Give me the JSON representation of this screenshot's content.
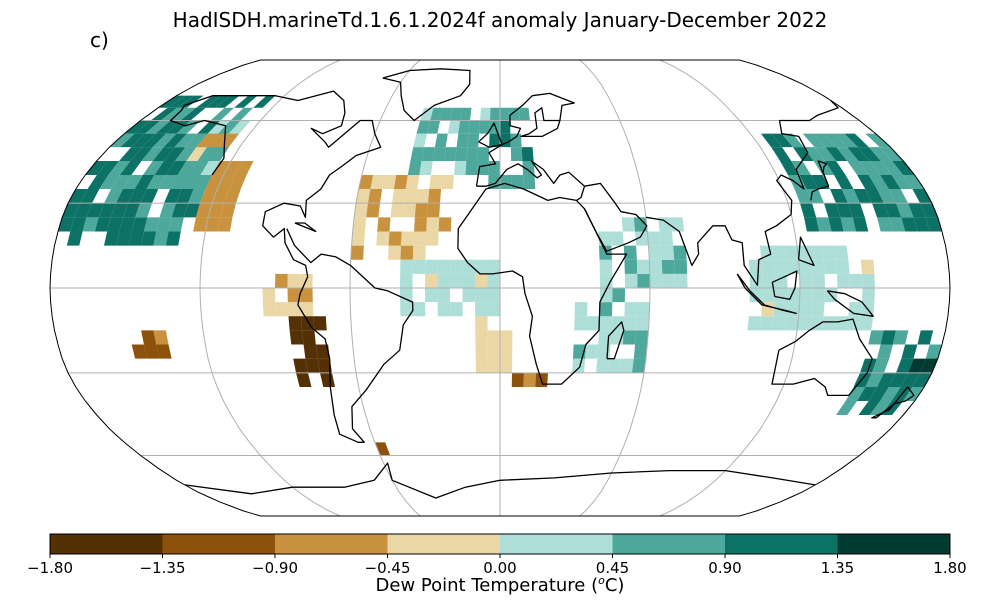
{
  "title": "HadISDH.marineTd.1.6.1.2024f anomaly January-December 2022",
  "panel_label": "c)",
  "colorbar": {
    "label_main": "Dew Point Temperature (",
    "label_sup": "o",
    "label_end": "C)",
    "ticks": [
      "−1.80",
      "−1.35",
      "−0.90",
      "−0.45",
      "0.00",
      "0.45",
      "0.90",
      "1.35",
      "1.80"
    ],
    "colors": [
      "#543005",
      "#8c510a",
      "#c9923f",
      "#ebd7a6",
      "#addfd8",
      "#4ea89c",
      "#0d7266",
      "#023b31"
    ]
  },
  "chart_data": {
    "type": "heatmap",
    "projection": "Robinson",
    "title": "HadISDH.marineTd.1.6.1.2024f anomaly January-December 2022",
    "colorbar_label": "Dew Point Temperature (oC)",
    "value_range": [
      -1.8,
      1.8
    ],
    "bins": [
      -1.8,
      -1.35,
      -0.9,
      -0.45,
      0.0,
      0.45,
      0.9,
      1.35,
      1.8
    ],
    "grid_resolution_deg": 5,
    "regions": [
      {
        "lat": [
          15,
          70
        ],
        "lon": [
          -180,
          -125
        ],
        "anomaly": 1.0
      },
      {
        "lat": [
          35,
          60
        ],
        "lon": [
          -140,
          -125
        ],
        "anomaly": 0.6
      },
      {
        "lat": [
          20,
          45
        ],
        "lon": [
          -125,
          -110
        ],
        "anomaly": -0.7
      },
      {
        "lat": [
          45,
          55
        ],
        "lon": [
          -140,
          -125
        ],
        "anomaly": -0.5
      },
      {
        "lat": [
          -15,
          5
        ],
        "lon": [
          -95,
          -75
        ],
        "anomaly": -0.3
      },
      {
        "lat": [
          -35,
          -10
        ],
        "lon": [
          -85,
          -70
        ],
        "anomaly": -1.6
      },
      {
        "lat": [
          -25,
          -15
        ],
        "lon": [
          -150,
          -135
        ],
        "anomaly": -0.9
      },
      {
        "lat": [
          -60,
          -55
        ],
        "lon": [
          -60,
          -55
        ],
        "anomaly": -1.2
      },
      {
        "lat": [
          10,
          40
        ],
        "lon": [
          -60,
          -20
        ],
        "anomaly": -0.4
      },
      {
        "lat": [
          40,
          65
        ],
        "lon": [
          -40,
          -5
        ],
        "anomaly": 0.6
      },
      {
        "lat": [
          35,
          65
        ],
        "lon": [
          -5,
          15
        ],
        "anomaly": 0.8
      },
      {
        "lat": [
          -10,
          10
        ],
        "lon": [
          -40,
          0
        ],
        "anomaly": 0.2
      },
      {
        "lat": [
          -30,
          -10
        ],
        "lon": [
          -10,
          5
        ],
        "anomaly": -0.3
      },
      {
        "lat": [
          -35,
          -30
        ],
        "lon": [
          0,
          20
        ],
        "anomaly": -0.9
      },
      {
        "lat": [
          0,
          25
        ],
        "lon": [
          40,
          75
        ],
        "anomaly": 0.4
      },
      {
        "lat": [
          -30,
          0
        ],
        "lon": [
          30,
          60
        ],
        "anomaly": 0.3
      },
      {
        "lat": [
          20,
          55
        ],
        "lon": [
          125,
          180
        ],
        "anomaly": 0.9
      },
      {
        "lat": [
          -15,
          15
        ],
        "lon": [
          100,
          150
        ],
        "anomaly": 0.2
      },
      {
        "lat": [
          -45,
          -15
        ],
        "lon": [
          150,
          180
        ],
        "anomaly": 0.9
      },
      {
        "lat": [
          -30,
          -25
        ],
        "lon": [
          170,
          180
        ],
        "anomaly": 1.7
      }
    ]
  }
}
